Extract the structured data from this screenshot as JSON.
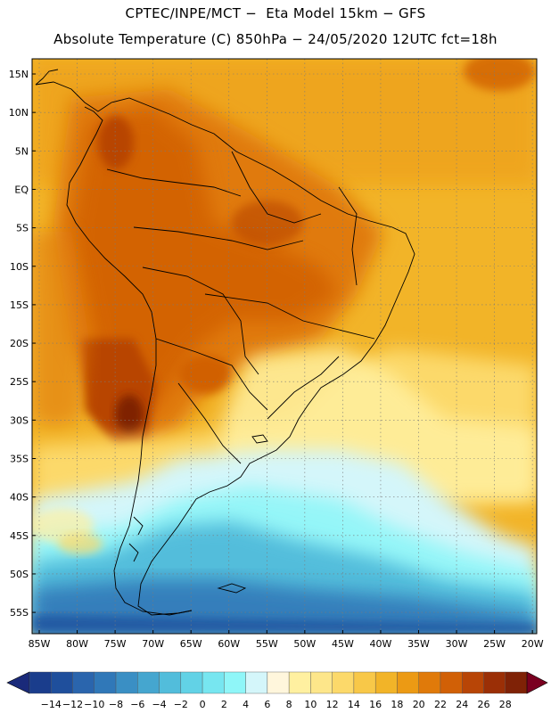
{
  "header": {
    "line1": "CPTEC/INPE/MCT −  Eta Model 15km − GFS",
    "line2": "Absolute Temperature (C) 850hPa − 24/05/2020 12UTC fct=18h"
  },
  "map": {
    "lat_labels": [
      "15N",
      "10N",
      "5N",
      "EQ",
      "5S",
      "10S",
      "15S",
      "20S",
      "25S",
      "30S",
      "35S",
      "40S",
      "45S",
      "50S",
      "55S"
    ],
    "lon_labels": [
      "85W",
      "80W",
      "75W",
      "70W",
      "65W",
      "60W",
      "55W",
      "50W",
      "45W",
      "40W",
      "35W",
      "30W",
      "25W",
      "20W"
    ]
  },
  "colorbar": {
    "labels": [
      "−14",
      "−12",
      "−10",
      "−8",
      "−6",
      "−4",
      "−2",
      "0",
      "2",
      "4",
      "6",
      "8",
      "10",
      "12",
      "14",
      "16",
      "18",
      "20",
      "22",
      "24",
      "26",
      "28"
    ],
    "colors": [
      "#1a3d8c",
      "#1f4f9c",
      "#2a65ad",
      "#3078b8",
      "#3a8fc4",
      "#45a6cf",
      "#52bddb",
      "#62d2e6",
      "#77e6f0",
      "#8ff6f8",
      "#d4f6fa",
      "#fff6dc",
      "#fff0a0",
      "#fde68a",
      "#fcd96a",
      "#f8c848",
      "#f2b428",
      "#ec9a14",
      "#e07a0a",
      "#d16006",
      "#b84506",
      "#9b2f06",
      "#7f2206"
    ],
    "low_arrow_color": "#1a2a7a",
    "high_arrow_color": "#7a0020"
  }
}
